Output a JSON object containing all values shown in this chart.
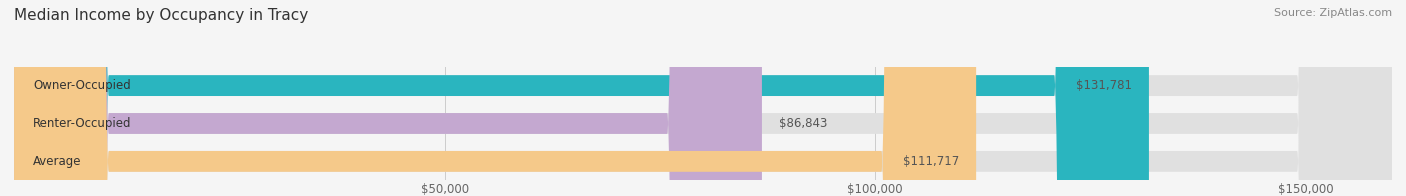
{
  "title": "Median Income by Occupancy in Tracy",
  "source_text": "Source: ZipAtlas.com",
  "categories": [
    "Owner-Occupied",
    "Renter-Occupied",
    "Average"
  ],
  "values": [
    131781,
    86843,
    111717
  ],
  "bar_colors": [
    "#2ab5bf",
    "#c4a8d0",
    "#f5c98a"
  ],
  "value_labels": [
    "$131,781",
    "$86,843",
    "$111,717"
  ],
  "label_inside": [
    true,
    false,
    true
  ],
  "xlim": [
    0,
    160000
  ],
  "xticks": [
    0,
    50000,
    100000,
    150000
  ],
  "xtick_labels": [
    "",
    "$50,000",
    "$100,000",
    "$150,000"
  ],
  "background_color": "#f5f5f5",
  "bar_background_color": "#e0e0e0",
  "bar_height": 0.55,
  "title_fontsize": 11,
  "tick_fontsize": 8.5,
  "value_fontsize": 8.5,
  "label_fontsize": 8.5,
  "source_fontsize": 8
}
